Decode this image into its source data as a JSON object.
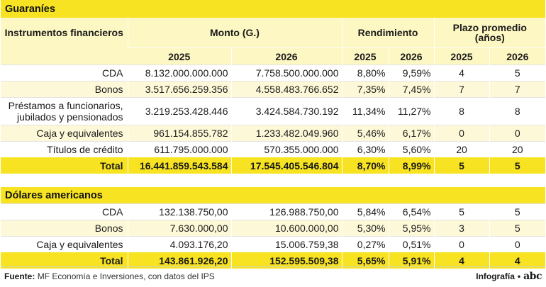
{
  "guaranies": {
    "title": "Guaraníes",
    "header": {
      "col_instruments": "Instrumentos financieros",
      "col_amount": "Monto (G.)",
      "col_yield": "Rendimiento",
      "col_term": "Plazo promedio (años)",
      "year_a": "2025",
      "year_b": "2026"
    },
    "rows": [
      {
        "label": "CDA",
        "m25": "8.132.000.000.000",
        "m26": "7.758.500.000.000",
        "r25": "8,80%",
        "r26": "9,59%",
        "p25": "4",
        "p26": "5"
      },
      {
        "label": "Bonos",
        "m25": "3.517.656.259.356",
        "m26": "4.558.483.766.652",
        "r25": "7,35%",
        "r26": "7,45%",
        "p25": "7",
        "p26": "7"
      },
      {
        "label": "Préstamos a funcionarios, jubilados y pensionados",
        "m25": "3.219.253.428.446",
        "m26": "3.424.584.730.192",
        "r25": "11,34%",
        "r26": "11,27%",
        "p25": "8",
        "p26": "8"
      },
      {
        "label": "Caja y equivalentes",
        "m25": "961.154.855.782",
        "m26": "1.233.482.049.960",
        "r25": "5,46%",
        "r26": "6,17%",
        "p25": "0",
        "p26": "0"
      },
      {
        "label": "Títulos de crédito",
        "m25": "611.795.000.000",
        "m26": "570.355.000.000",
        "r25": "6,30%",
        "r26": "5,60%",
        "p25": "20",
        "p26": "20"
      }
    ],
    "total": {
      "label": "Total",
      "m25": "16.441.859.543.584",
      "m26": "17.545.405.546.804",
      "r25": "8,70%",
      "r26": "8,99%",
      "p25": "5",
      "p26": "5"
    }
  },
  "dolares": {
    "title": "Dólares americanos",
    "rows": [
      {
        "label": "CDA",
        "m25": "132.138.750,00",
        "m26": "126.988.750,00",
        "r25": "5,84%",
        "r26": "6,54%",
        "p25": "5",
        "p26": "5"
      },
      {
        "label": "Bonos",
        "m25": "7.630.000,00",
        "m26": "10.600.000,00",
        "r25": "5,30%",
        "r26": "5,95%",
        "p25": "3",
        "p26": "5"
      },
      {
        "label": "Caja y equivalentes",
        "m25": "4.093.176,20",
        "m26": "15.006.759,38",
        "r25": "0,27%",
        "r26": "0,51%",
        "p25": "0",
        "p26": "0"
      }
    ],
    "total": {
      "label": "Total",
      "m25": "143.861.926,20",
      "m26": "152.595.509,38",
      "r25": "5,65%",
      "r26": "5,91%",
      "p25": "4",
      "p26": "4"
    }
  },
  "footer": {
    "source_label": "Fuente:",
    "source_text": "MF Economía e Inversiones, con datos del IPS",
    "credit": "Infografía",
    "credit_sep": "•",
    "logo_text": "abc"
  },
  "colors": {
    "band": "#f7e321",
    "header": "#fdf7c3",
    "stripe": "#fdf9d8"
  }
}
